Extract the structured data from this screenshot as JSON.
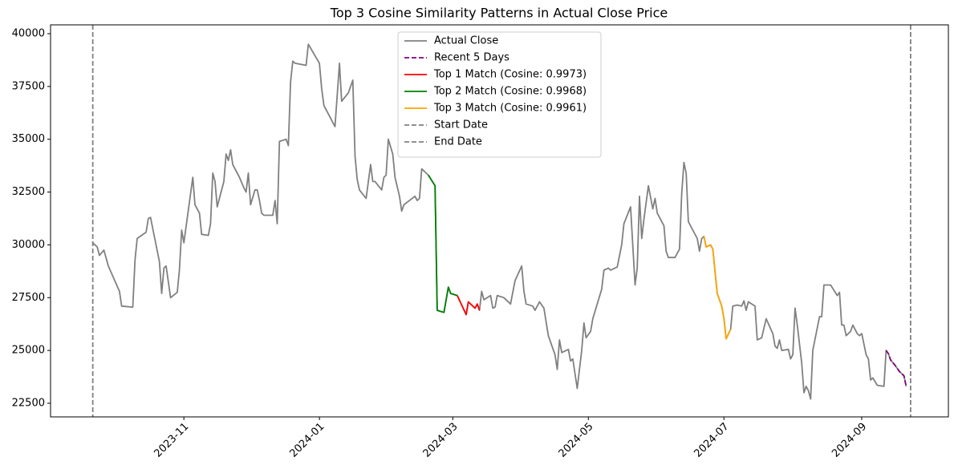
{
  "chart_data": {
    "type": "line",
    "title": "Top 3 Cosine Similarity Patterns in Actual Close Price",
    "xlim": [
      19602,
      20006
    ],
    "ylim": [
      21854,
      40418
    ],
    "xticks": [
      {
        "value": 19662,
        "label": "2023-11"
      },
      {
        "value": 19723,
        "label": "2024-01"
      },
      {
        "value": 19783,
        "label": "2024-03"
      },
      {
        "value": 19844,
        "label": "2024-05"
      },
      {
        "value": 19905,
        "label": "2024-07"
      },
      {
        "value": 19967,
        "label": "2024-09"
      }
    ],
    "yticks": [
      22500,
      25000,
      27500,
      30000,
      32500,
      35000,
      37500,
      40000
    ],
    "legend": "upper center",
    "series": [
      {
        "name": "Actual Close",
        "color": "#808080",
        "linestyle": "solid",
        "x": [
          19621,
          19623,
          19624,
          19626,
          19628,
          19633,
          19634,
          19639,
          19640,
          19641,
          19645,
          19646,
          19647,
          19651,
          19652,
          19653,
          19654,
          19656,
          19659,
          19660,
          19661,
          19662,
          19666,
          19667,
          19669,
          19670,
          19673,
          19674,
          19675,
          19676,
          19677,
          19680,
          19681,
          19682,
          19683,
          19684,
          19687,
          19689,
          19690,
          19691,
          19692,
          19694,
          19695,
          19696,
          19697,
          19698,
          19702,
          19703,
          19704,
          19705,
          19708,
          19709,
          19710,
          19711,
          19712,
          19717,
          19718,
          19723,
          19724,
          19725,
          19730,
          19732,
          19733,
          19736,
          19738,
          19739,
          19740,
          19741,
          19744,
          19746,
          19747,
          19748,
          19751,
          19752,
          19753,
          19754,
          19756,
          19757,
          19759,
          19760,
          19761,
          19766,
          19767,
          19768,
          19769,
          19772,
          19775,
          19776,
          19779,
          19781,
          19782,
          19785,
          19789,
          19790,
          19793,
          19794,
          19795,
          19796,
          19797,
          19800,
          19801,
          19802,
          19803,
          19806,
          19809,
          19811,
          19814,
          19815,
          19816,
          19819,
          19820,
          19822,
          19824,
          19826,
          19829,
          19830,
          19831,
          19832,
          19835,
          19836,
          19837,
          19839,
          19841,
          19842,
          19843,
          19845,
          19846,
          19850,
          19851,
          19853,
          19854,
          19857,
          19859,
          19860,
          19863,
          19865,
          19866,
          19867,
          19868,
          19869,
          19871,
          19873,
          19874,
          19875,
          19878,
          19879,
          19880,
          19883,
          19885,
          19886,
          19887,
          19888,
          19889,
          19893,
          19894,
          19895,
          19896,
          19897,
          19899,
          19900,
          19902,
          19904,
          19905,
          19906,
          19908,
          19909,
          19911,
          19913,
          19914,
          19915,
          19916,
          19919,
          19920,
          19922,
          19924,
          19927,
          19928,
          19929,
          19930,
          19931,
          19934,
          19935,
          19936,
          19937,
          19938,
          19940,
          19941,
          19942,
          19943,
          19944,
          19945,
          19948,
          19949,
          19950,
          19953,
          19956,
          19957,
          19958,
          19959,
          19960,
          19962,
          19963,
          19965,
          19966,
          19967,
          19969,
          19970,
          19971,
          19972,
          19974,
          19977,
          19978,
          19979,
          19980,
          19982,
          19984,
          19986,
          19987
        ],
        "values": [
          30100,
          29900,
          29500,
          29750,
          29000,
          27800,
          27100,
          27050,
          29300,
          30300,
          30600,
          31250,
          31300,
          29200,
          27700,
          28900,
          29000,
          27500,
          27750,
          28800,
          30700,
          30100,
          33200,
          31900,
          31500,
          30500,
          30450,
          31000,
          33400,
          33000,
          31800,
          33000,
          34300,
          34000,
          34500,
          33800,
          33200,
          32700,
          32500,
          33400,
          31900,
          32600,
          32600,
          32100,
          31500,
          31400,
          31400,
          32100,
          31000,
          34900,
          35000,
          34700,
          37700,
          38700,
          38600,
          38500,
          39500,
          38600,
          37400,
          36600,
          35600,
          38600,
          36800,
          37200,
          37800,
          34200,
          33100,
          32600,
          32200,
          33800,
          33000,
          33000,
          32600,
          33200,
          33300,
          35000,
          34300,
          33200,
          32300,
          31600,
          31900,
          32300,
          32100,
          32200,
          33600,
          33300,
          32800,
          26900,
          26800,
          28000,
          27700,
          27600,
          26700,
          27300,
          27000,
          27200,
          26900,
          27800,
          27400,
          27600,
          27000,
          27050,
          27600,
          27500,
          27200,
          28300,
          29000,
          27800,
          27200,
          27100,
          26900,
          27300,
          27000,
          25700,
          24800,
          24100,
          25500,
          24900,
          25050,
          24500,
          24600,
          23200,
          25000,
          26300,
          25600,
          25900,
          26500,
          27900,
          28800,
          28900,
          28800,
          28950,
          30000,
          31000,
          31800,
          28100,
          28900,
          32300,
          30300,
          31200,
          32800,
          31700,
          32200,
          31500,
          30900,
          29700,
          29400,
          29400,
          29800,
          32400,
          33900,
          33400,
          31100,
          30300,
          29700,
          30300,
          30400,
          29900,
          30000,
          29800,
          27700,
          27100,
          26500,
          25550,
          26000,
          27100,
          27150,
          27100,
          27350,
          26900,
          27300,
          27100,
          25500,
          25600,
          26500,
          25800,
          25200,
          25100,
          25500,
          25000,
          25050,
          24600,
          24800,
          27000,
          26200,
          24400,
          23000,
          23300,
          23100,
          22700,
          25000,
          26600,
          26600,
          28100,
          28100,
          27600,
          27750,
          26200,
          26200,
          25700,
          25900,
          26200,
          25800,
          25700,
          25800,
          24800,
          24600,
          23600,
          23700,
          23350,
          23300,
          25000,
          24850,
          24550,
          24300,
          24000,
          23800,
          23300
        ]
      },
      {
        "name": "Recent 5 Days",
        "color": "purple",
        "linestyle": "dashed",
        "x": [
          19978,
          19979,
          19980,
          19982,
          19984,
          19986,
          19987
        ],
        "values": [
          25000,
          24850,
          24550,
          24300,
          24000,
          23800,
          23300
        ]
      },
      {
        "name": "Top 1 Match (Cosine: 0.9973)",
        "color": "red",
        "linestyle": "solid",
        "x": [
          19785,
          19789,
          19790,
          19793,
          19794,
          19795
        ],
        "values": [
          27600,
          26700,
          27300,
          27000,
          27200,
          26900
        ]
      },
      {
        "name": "Top 2 Match (Cosine: 0.9968)",
        "color": "green",
        "linestyle": "solid",
        "x": [
          19772,
          19775,
          19776,
          19779,
          19781,
          19782,
          19785
        ],
        "values": [
          33300,
          32800,
          26900,
          26800,
          28000,
          27700,
          27600
        ]
      },
      {
        "name": "Top 3 Match (Cosine: 0.9961)",
        "color": "orange",
        "linestyle": "solid",
        "x": [
          19896,
          19897,
          19899,
          19900,
          19902,
          19904,
          19905,
          19906,
          19908
        ],
        "values": [
          30400,
          29900,
          30000,
          29800,
          27700,
          27100,
          26500,
          25550,
          26000
        ]
      }
    ],
    "vlines": [
      {
        "name": "Start Date",
        "x": 19621,
        "color": "#808080",
        "linestyle": "dashed"
      },
      {
        "name": "End Date",
        "x": 19989,
        "color": "#808080",
        "linestyle": "dashed"
      }
    ]
  }
}
